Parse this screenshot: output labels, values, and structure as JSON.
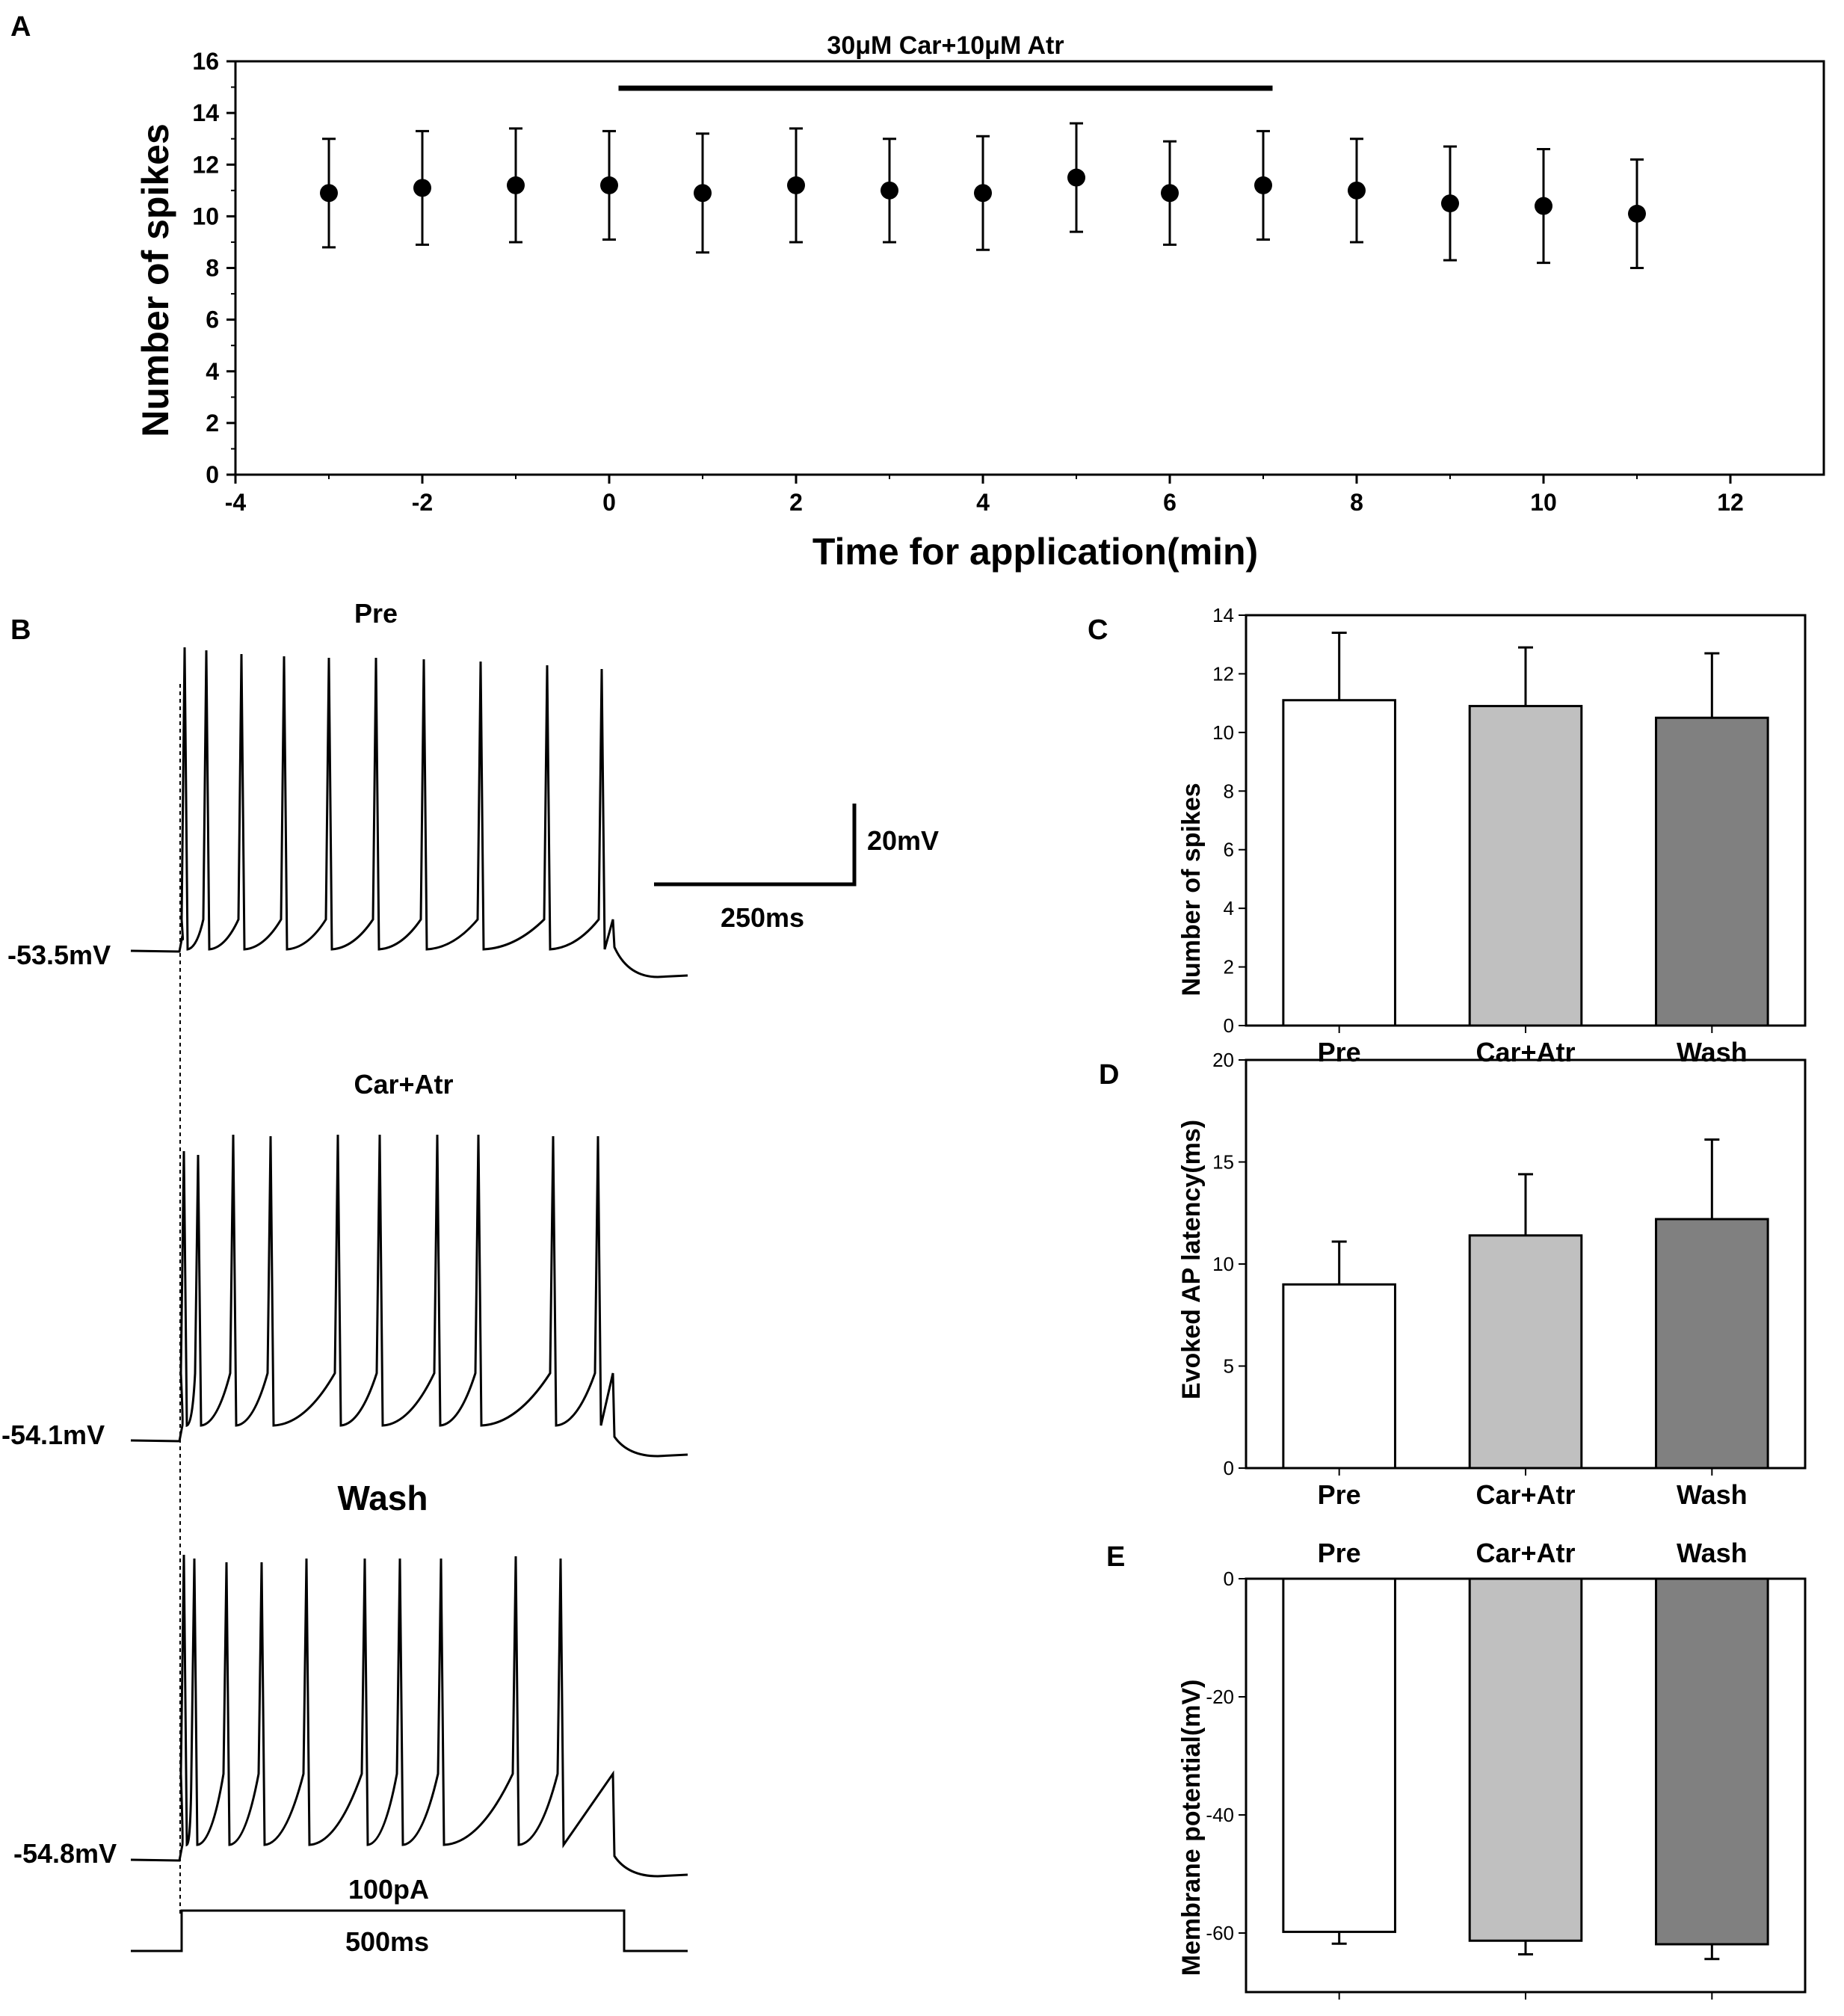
{
  "chart_data": [
    {
      "panel": "A",
      "type": "scatter",
      "title": "30μM Car+10μM Atr",
      "xlabel": "Time for application(min)",
      "ylabel": "Number of spikes",
      "xlim": [
        -4,
        13
      ],
      "ylim": [
        0,
        16
      ],
      "xticks": [
        "-4",
        "-2",
        "0",
        "2",
        "4",
        "6",
        "8",
        "10",
        "12"
      ],
      "yticks": [
        "0",
        "2",
        "4",
        "6",
        "8",
        "10",
        "12",
        "14",
        "16"
      ],
      "application_bar": [
        0.1,
        7.1
      ],
      "x": [
        -3,
        -2,
        -1,
        0,
        1,
        2,
        3,
        4,
        5,
        6,
        7,
        8,
        9,
        10,
        11
      ],
      "y": [
        10.9,
        11.1,
        11.2,
        11.2,
        10.9,
        11.2,
        11.0,
        10.9,
        11.5,
        10.9,
        11.2,
        11.0,
        10.5,
        10.4,
        10.1
      ],
      "err": [
        2.1,
        2.2,
        2.2,
        2.1,
        2.3,
        2.2,
        2.0,
        2.2,
        2.1,
        2.0,
        2.1,
        2.0,
        2.2,
        2.2,
        2.1
      ]
    },
    {
      "panel": "C",
      "type": "bar",
      "categories": [
        "Pre",
        "Car+Atr",
        "Wash"
      ],
      "values": [
        11.1,
        10.9,
        10.5
      ],
      "err": [
        2.3,
        2.0,
        2.2
      ],
      "colors": [
        "#ffffff",
        "#c0c0c0",
        "#808080"
      ],
      "ylabel": "Number of spikes",
      "ylim": [
        0,
        14
      ],
      "yticks": [
        "0",
        "2",
        "4",
        "6",
        "8",
        "10",
        "12",
        "14"
      ]
    },
    {
      "panel": "D",
      "type": "bar",
      "categories": [
        "Pre",
        "Car+Atr",
        "Wash"
      ],
      "values": [
        9.0,
        11.4,
        12.2
      ],
      "err": [
        2.1,
        3.0,
        3.9
      ],
      "colors": [
        "#ffffff",
        "#c0c0c0",
        "#808080"
      ],
      "ylabel": "Evoked AP latency(ms)",
      "ylim": [
        0,
        20
      ],
      "yticks": [
        "0",
        "5",
        "10",
        "15",
        "20"
      ]
    },
    {
      "panel": "E",
      "type": "bar",
      "categories": [
        "Pre",
        "Car+Atr",
        "Wash"
      ],
      "values": [
        -59.8,
        -61.3,
        -61.9
      ],
      "err": [
        2.0,
        2.3,
        2.5
      ],
      "colors": [
        "#ffffff",
        "#c0c0c0",
        "#808080"
      ],
      "ylabel": "Membrane potential(mV)",
      "ylim": [
        -70,
        0
      ],
      "yticks": [
        "0",
        "-20",
        "-40",
        "-60"
      ]
    }
  ],
  "panel_b": {
    "letter": "B",
    "traces": [
      {
        "title": "Pre",
        "resting_label": "-53.5mV"
      },
      {
        "title": "Car+Atr",
        "resting_label": "-54.1mV"
      },
      {
        "title": "Wash",
        "resting_label": "-54.8mV"
      }
    ],
    "scale_bar": {
      "voltage": "20mV",
      "time": "250ms"
    },
    "stimulus": {
      "amplitude": "100pA",
      "duration": "500ms"
    }
  },
  "panel_letters": {
    "a": "A",
    "c": "C",
    "d": "D",
    "e": "E"
  }
}
